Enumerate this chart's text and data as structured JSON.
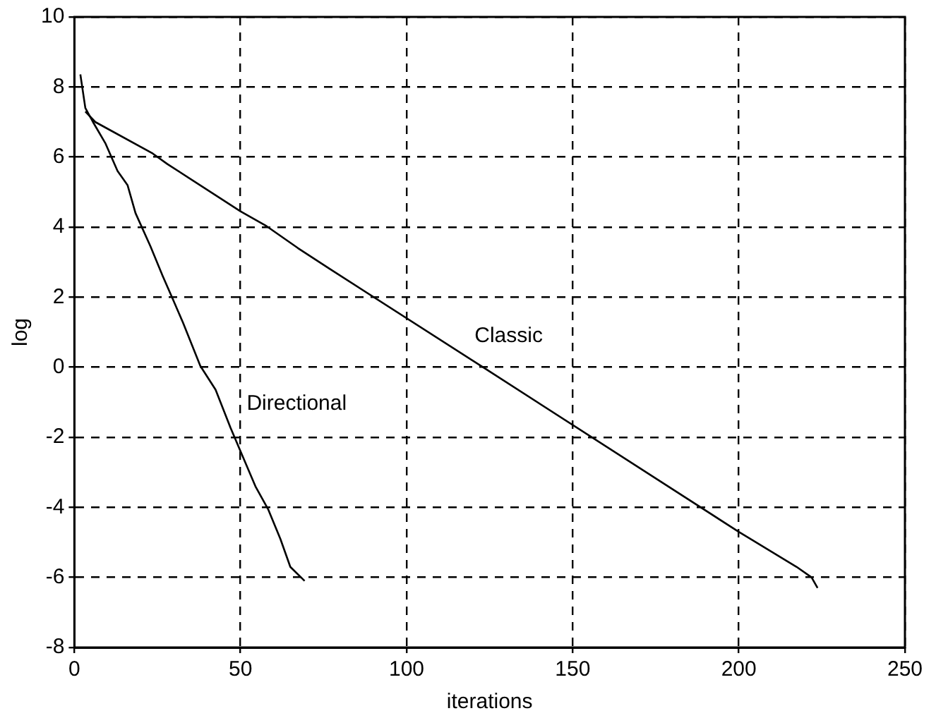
{
  "chart_data": {
    "type": "line",
    "xlabel": "iterations",
    "ylabel": "log",
    "xlim": [
      0,
      250
    ],
    "xticks": [
      0,
      50,
      100,
      150,
      200,
      250
    ],
    "ylim": [
      -8,
      10
    ],
    "yticks": [
      -8,
      -6,
      -4,
      -2,
      0,
      2,
      4,
      6,
      8,
      10
    ],
    "grid": true,
    "line_style": "solid",
    "marker": "none",
    "series": [
      {
        "name": "Directional",
        "color": "#000000",
        "x": [
          1.8,
          3.3,
          5.6,
          9.3,
          13,
          16,
          18.4,
          22.9,
          26.6,
          29.6,
          32.7,
          37.9,
          42.5,
          47,
          50,
          54.5,
          58.3,
          62,
          65,
          69.3
        ],
        "values": [
          8.36,
          7.4,
          7.0,
          6.4,
          5.6,
          5.2,
          4.4,
          3.45,
          2.6,
          1.95,
          1.27,
          0.04,
          -0.64,
          -1.73,
          -2.4,
          -3.4,
          -4.05,
          -4.9,
          -5.7,
          -6.1
        ]
      },
      {
        "name": "Classic",
        "color": "#000000",
        "x": [
          3.3,
          6.3,
          23.6,
          28,
          50,
          57.5,
          67.3,
          77,
          123,
          200,
          217.4,
          221.9,
          223.7
        ],
        "values": [
          7.3,
          7.0,
          6.1,
          5.8,
          4.45,
          4.05,
          3.4,
          2.8,
          0,
          -4.7,
          -5.7,
          -6.0,
          -6.3
        ]
      }
    ]
  }
}
